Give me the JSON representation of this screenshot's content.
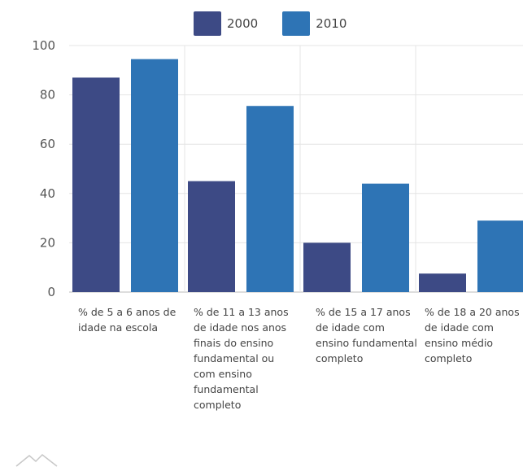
{
  "chart_data": {
    "type": "bar",
    "title": "",
    "xlabel": "",
    "ylabel": "",
    "ylim": [
      0,
      100
    ],
    "yticks": [
      0,
      20,
      40,
      60,
      80,
      100
    ],
    "grid": true,
    "legend_position": "top",
    "categories": [
      "% de 5 a 6 anos de idade na escola",
      "% de 11 a 13 anos de idade nos anos finais do ensino fundamental ou com ensino fundamental completo",
      "% de 15 a 17 anos de idade com ensino fundamental completo",
      "% de 18 a 20 anos de idade com ensino médio completo"
    ],
    "series": [
      {
        "name": "2000",
        "color": "#3d4a85",
        "values": [
          87,
          45,
          20,
          7.5
        ]
      },
      {
        "name": "2010",
        "color": "#2e74b5",
        "values": [
          94.5,
          75.5,
          44,
          29
        ]
      }
    ]
  }
}
